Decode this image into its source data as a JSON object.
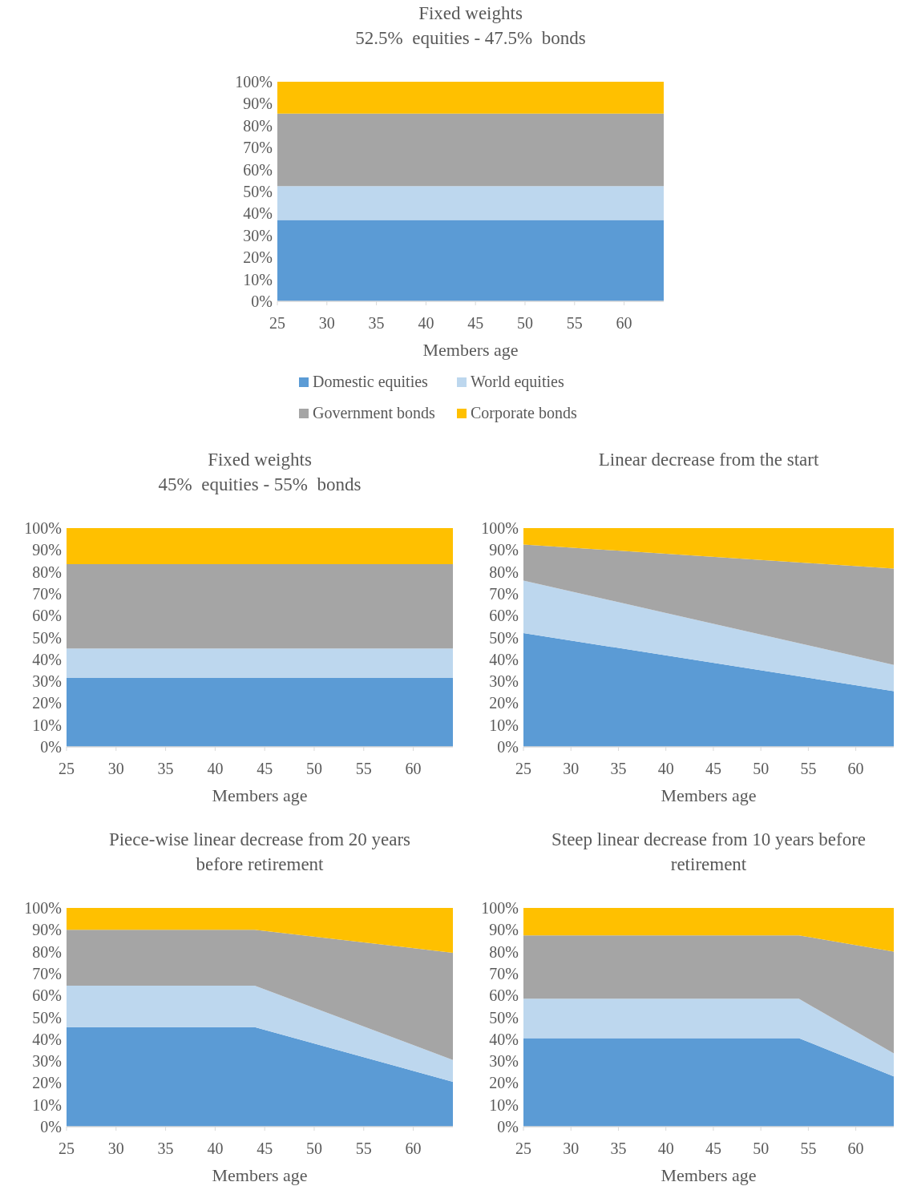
{
  "chart_data": [
    {
      "type": "area",
      "stacked": true,
      "title": "Fixed weights",
      "subtitle": "52.5%  equities - 47.5%  bonds",
      "xlabel": "Members age",
      "x": [
        25,
        64
      ],
      "xlim": [
        25,
        64
      ],
      "xticks": [
        25,
        30,
        35,
        40,
        45,
        50,
        55,
        60
      ],
      "ylim": [
        0,
        100
      ],
      "yticks": [
        {
          "value": 0,
          "label": "0%"
        },
        {
          "value": 10,
          "label": "10%"
        },
        {
          "value": 20,
          "label": "20%"
        },
        {
          "value": 30,
          "label": "30%"
        },
        {
          "value": 40,
          "label": "40%"
        },
        {
          "value": 50,
          "label": "50%"
        },
        {
          "value": 60,
          "label": "60%"
        },
        {
          "value": 70,
          "label": "70%"
        },
        {
          "value": 80,
          "label": "80%"
        },
        {
          "value": 90,
          "label": "90%"
        },
        {
          "value": 100,
          "label": "100%"
        }
      ],
      "grid": false,
      "legend": "bottom",
      "series": [
        {
          "name": "Domestic equities",
          "color": "#5b9bd5",
          "values": [
            37,
            37
          ]
        },
        {
          "name": "World equities",
          "color": "#bdd7ee",
          "values": [
            15.5,
            15.5
          ]
        },
        {
          "name": "Government bonds",
          "color": "#a5a5a5",
          "values": [
            33,
            33
          ]
        },
        {
          "name": "Corporate bonds",
          "color": "#ffc000",
          "values": [
            14.5,
            14.5
          ]
        }
      ]
    },
    {
      "type": "area",
      "stacked": true,
      "title": "Fixed weights",
      "subtitle": "45%  equities - 55%  bonds",
      "xlabel": "Members age",
      "x": [
        25,
        64
      ],
      "xlim": [
        25,
        64
      ],
      "xticks": [
        25,
        30,
        35,
        40,
        45,
        50,
        55,
        60
      ],
      "ylim": [
        0,
        100
      ],
      "yticks": [
        {
          "value": 0,
          "label": "0%"
        },
        {
          "value": 10,
          "label": "10%"
        },
        {
          "value": 20,
          "label": "20%"
        },
        {
          "value": 30,
          "label": "30%"
        },
        {
          "value": 40,
          "label": "40%"
        },
        {
          "value": 50,
          "label": "50%"
        },
        {
          "value": 60,
          "label": "60%"
        },
        {
          "value": 70,
          "label": "70%"
        },
        {
          "value": 80,
          "label": "80%"
        },
        {
          "value": 90,
          "label": "90%"
        },
        {
          "value": 100,
          "label": "100%"
        }
      ],
      "grid": false,
      "series": [
        {
          "color": "#5b9bd5",
          "values": [
            31.5,
            31.5
          ]
        },
        {
          "color": "#bdd7ee",
          "values": [
            13.5,
            13.5
          ]
        },
        {
          "color": "#a5a5a5",
          "values": [
            38.5,
            38.5
          ]
        },
        {
          "color": "#ffc000",
          "values": [
            16.5,
            16.5
          ]
        }
      ]
    },
    {
      "type": "area",
      "stacked": true,
      "title": "Linear decrease from the start",
      "xlabel": "Members age",
      "x": [
        25,
        64
      ],
      "xlim": [
        25,
        64
      ],
      "xticks": [
        25,
        30,
        35,
        40,
        45,
        50,
        55,
        60
      ],
      "ylim": [
        0,
        100
      ],
      "yticks": [
        {
          "value": 0,
          "label": "0%"
        },
        {
          "value": 10,
          "label": "10%"
        },
        {
          "value": 20,
          "label": "20%"
        },
        {
          "value": 30,
          "label": "30%"
        },
        {
          "value": 40,
          "label": "40%"
        },
        {
          "value": 50,
          "label": "50%"
        },
        {
          "value": 60,
          "label": "60%"
        },
        {
          "value": 70,
          "label": "70%"
        },
        {
          "value": 80,
          "label": "80%"
        },
        {
          "value": 90,
          "label": "90%"
        },
        {
          "value": 100,
          "label": "100%"
        }
      ],
      "grid": false,
      "series": [
        {
          "color": "#5b9bd5",
          "values": [
            52,
            25.5
          ]
        },
        {
          "color": "#bdd7ee",
          "values": [
            24,
            12
          ]
        },
        {
          "color": "#a5a5a5",
          "values": [
            16.5,
            44
          ]
        },
        {
          "color": "#ffc000",
          "values": [
            7.5,
            18.5
          ]
        }
      ]
    },
    {
      "type": "area",
      "stacked": true,
      "title": "Piece-wise linear decrease from 20 years before retirement",
      "xlabel": "Members age",
      "x": [
        25,
        44,
        64
      ],
      "xlim": [
        25,
        64
      ],
      "xticks": [
        25,
        30,
        35,
        40,
        45,
        50,
        55,
        60
      ],
      "ylim": [
        0,
        100
      ],
      "yticks": [
        {
          "value": 0,
          "label": "0%"
        },
        {
          "value": 10,
          "label": "10%"
        },
        {
          "value": 20,
          "label": "20%"
        },
        {
          "value": 30,
          "label": "30%"
        },
        {
          "value": 40,
          "label": "40%"
        },
        {
          "value": 50,
          "label": "50%"
        },
        {
          "value": 60,
          "label": "60%"
        },
        {
          "value": 70,
          "label": "70%"
        },
        {
          "value": 80,
          "label": "80%"
        },
        {
          "value": 90,
          "label": "90%"
        },
        {
          "value": 100,
          "label": "100%"
        }
      ],
      "grid": false,
      "series": [
        {
          "color": "#5b9bd5",
          "values": [
            45.5,
            45.5,
            20.5
          ]
        },
        {
          "color": "#bdd7ee",
          "values": [
            19,
            19,
            10
          ]
        },
        {
          "color": "#a5a5a5",
          "values": [
            25.5,
            25.5,
            49
          ]
        },
        {
          "color": "#ffc000",
          "values": [
            10,
            10,
            20.5
          ]
        }
      ]
    },
    {
      "type": "area",
      "stacked": true,
      "title": "Steep linear decrease from 10 years before retirement",
      "xlabel": "Members age",
      "x": [
        25,
        54,
        64
      ],
      "xlim": [
        25,
        64
      ],
      "xticks": [
        25,
        30,
        35,
        40,
        45,
        50,
        55,
        60
      ],
      "ylim": [
        0,
        100
      ],
      "yticks": [
        {
          "value": 0,
          "label": "0%"
        },
        {
          "value": 10,
          "label": "10%"
        },
        {
          "value": 20,
          "label": "20%"
        },
        {
          "value": 30,
          "label": "30%"
        },
        {
          "value": 40,
          "label": "40%"
        },
        {
          "value": 50,
          "label": "50%"
        },
        {
          "value": 60,
          "label": "60%"
        },
        {
          "value": 70,
          "label": "70%"
        },
        {
          "value": 80,
          "label": "80%"
        },
        {
          "value": 90,
          "label": "90%"
        },
        {
          "value": 100,
          "label": "100%"
        }
      ],
      "grid": false,
      "series": [
        {
          "color": "#5b9bd5",
          "values": [
            40.5,
            40.5,
            23
          ]
        },
        {
          "color": "#bdd7ee",
          "values": [
            18,
            18,
            10.5
          ]
        },
        {
          "color": "#a5a5a5",
          "values": [
            29,
            29,
            46.5
          ]
        },
        {
          "color": "#ffc000",
          "values": [
            12.5,
            12.5,
            20
          ]
        }
      ]
    }
  ]
}
